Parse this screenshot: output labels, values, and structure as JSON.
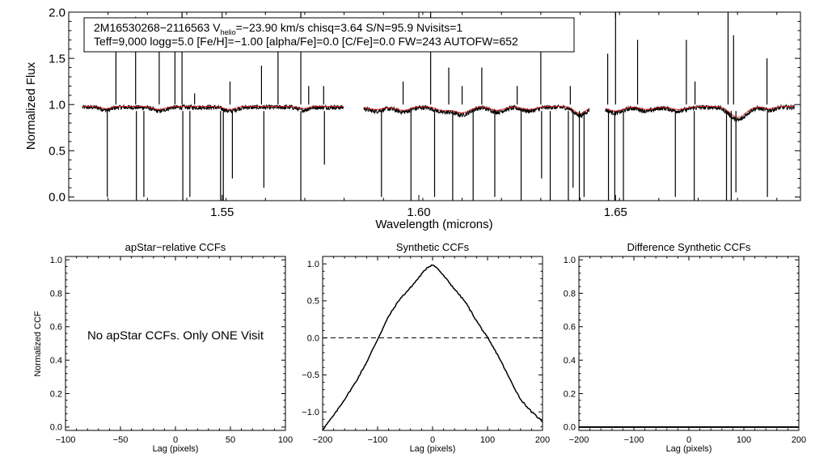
{
  "chart_data": [
    {
      "type": "line",
      "id": "spectrum",
      "xlabel": "Wavelength (microns)",
      "ylabel": "Normalized Flux",
      "xlim": [
        1.511,
        1.697
      ],
      "ylim": [
        -0.04,
        2.0
      ],
      "xticks": [
        1.55,
        1.6,
        1.65
      ],
      "xtick_labels": [
        "1.55",
        "1.60",
        "1.65"
      ],
      "yticks": [
        0.0,
        0.5,
        1.0,
        1.5,
        2.0
      ],
      "ytick_labels": [
        "0.0",
        "0.5",
        "1.0",
        "1.5",
        "2.0"
      ],
      "chips": [
        [
          1.5145,
          1.5808
        ],
        [
          1.586,
          1.6433
        ],
        [
          1.6474,
          1.6955
        ]
      ],
      "annotation": {
        "line1_part1": "2M16530268−2116563  V",
        "line1_sub": "helio",
        "line1_part2": "=−23.90 km/s  chisq=3.64  S/N=95.9  Nvisits=1",
        "line2": "Teff=9,000 logg=5.0 [Fe/H]=−1.00 [alpha/Fe]=0.0 [C/Fe]=0.0 FW=243 AUTOFW=652"
      },
      "series": [
        {
          "name": "observed spectrum",
          "color": "#000000",
          "level": 0.97,
          "noise": 0.025
        },
        {
          "name": "synthetic model",
          "color": "#d62020",
          "level": 0.98
        }
      ],
      "dips": [
        {
          "x": 1.5206,
          "depth": 0.03,
          "width": 0.0012
        },
        {
          "x": 1.534,
          "depth": 0.04,
          "width": 0.0015
        },
        {
          "x": 1.552,
          "depth": 0.04,
          "width": 0.0015
        },
        {
          "x": 1.5705,
          "depth": 0.03,
          "width": 0.0012
        },
        {
          "x": 1.589,
          "depth": 0.04,
          "width": 0.002
        },
        {
          "x": 1.596,
          "depth": 0.05,
          "width": 0.0018
        },
        {
          "x": 1.606,
          "depth": 0.05,
          "width": 0.0018
        },
        {
          "x": 1.611,
          "depth": 0.08,
          "width": 0.002
        },
        {
          "x": 1.62,
          "depth": 0.05,
          "width": 0.0018
        },
        {
          "x": 1.628,
          "depth": 0.04,
          "width": 0.0018
        },
        {
          "x": 1.641,
          "depth": 0.09,
          "width": 0.0015
        },
        {
          "x": 1.65,
          "depth": 0.06,
          "width": 0.002
        },
        {
          "x": 1.658,
          "depth": 0.04,
          "width": 0.0018
        },
        {
          "x": 1.666,
          "depth": 0.04,
          "width": 0.002
        },
        {
          "x": 1.6811,
          "depth": 0.14,
          "width": 0.002
        },
        {
          "x": 1.689,
          "depth": 0.03,
          "width": 0.0015
        }
      ],
      "spikes": [
        {
          "x": 1.523,
          "y": 1.67
        },
        {
          "x": 1.528,
          "y": 1.95
        },
        {
          "x": 1.534,
          "y": 1.6
        },
        {
          "x": 1.538,
          "y": 1.62
        },
        {
          "x": 1.5398,
          "y": 2.0
        },
        {
          "x": 1.543,
          "y": 1.12
        },
        {
          "x": 1.552,
          "y": 1.25
        },
        {
          "x": 1.56,
          "y": 1.42
        },
        {
          "x": 1.5642,
          "y": 1.75
        },
        {
          "x": 1.57,
          "y": 2.0
        },
        {
          "x": 1.572,
          "y": 1.2
        },
        {
          "x": 1.5758,
          "y": 1.2
        },
        {
          "x": 1.596,
          "y": 1.25
        },
        {
          "x": 1.603,
          "y": 2.0
        },
        {
          "x": 1.6076,
          "y": 1.4
        },
        {
          "x": 1.611,
          "y": 1.2
        },
        {
          "x": 1.616,
          "y": 1.4
        },
        {
          "x": 1.625,
          "y": 1.2
        },
        {
          "x": 1.631,
          "y": 1.68
        },
        {
          "x": 1.6385,
          "y": 1.2
        },
        {
          "x": 1.648,
          "y": 1.55
        },
        {
          "x": 1.65,
          "y": 2.0
        },
        {
          "x": 1.6556,
          "y": 1.7
        },
        {
          "x": 1.668,
          "y": 1.7
        },
        {
          "x": 1.6702,
          "y": 1.25
        },
        {
          "x": 1.6786,
          "y": 2.0
        },
        {
          "x": 1.68,
          "y": 1.75
        },
        {
          "x": 1.6885,
          "y": 1.5
        }
      ],
      "drops": [
        {
          "x": 1.5208,
          "y": 0.0
        },
        {
          "x": 1.5282,
          "y": -0.04
        },
        {
          "x": 1.5301,
          "y": 0.0
        },
        {
          "x": 1.54,
          "y": -0.04
        },
        {
          "x": 1.5418,
          "y": 0.0
        },
        {
          "x": 1.5496,
          "y": -0.04
        },
        {
          "x": 1.5503,
          "y": -0.04
        },
        {
          "x": 1.5526,
          "y": 0.2
        },
        {
          "x": 1.5606,
          "y": 0.1
        },
        {
          "x": 1.57,
          "y": -0.04
        },
        {
          "x": 1.576,
          "y": 0.35
        },
        {
          "x": 1.5905,
          "y": 0.0
        },
        {
          "x": 1.598,
          "y": -0.04
        },
        {
          "x": 1.604,
          "y": 0.0
        },
        {
          "x": 1.6086,
          "y": -0.04
        },
        {
          "x": 1.6138,
          "y": -0.04
        },
        {
          "x": 1.6193,
          "y": 0.0
        },
        {
          "x": 1.626,
          "y": -0.04
        },
        {
          "x": 1.6312,
          "y": 0.2
        },
        {
          "x": 1.6334,
          "y": -0.04
        },
        {
          "x": 1.638,
          "y": -0.04
        },
        {
          "x": 1.6392,
          "y": 0.1
        },
        {
          "x": 1.6408,
          "y": -0.04
        },
        {
          "x": 1.642,
          "y": 0.0
        },
        {
          "x": 1.6482,
          "y": -0.04
        },
        {
          "x": 1.6498,
          "y": -0.04
        },
        {
          "x": 1.652,
          "y": -0.04
        },
        {
          "x": 1.6652,
          "y": 0.0
        },
        {
          "x": 1.67,
          "y": -0.04
        },
        {
          "x": 1.6782,
          "y": -0.04
        },
        {
          "x": 1.6794,
          "y": -0.04
        },
        {
          "x": 1.6806,
          "y": 0.05
        },
        {
          "x": 1.6886,
          "y": 0.0
        }
      ]
    },
    {
      "type": "line",
      "id": "apstar-ccf",
      "title": "apStar−relative CCFs",
      "xlabel": "Lag (pixels)",
      "ylabel": "Normalized CCF",
      "xlim": [
        -100,
        100
      ],
      "ylim": [
        -0.02,
        1.02
      ],
      "xticks": [
        -100,
        -50,
        0,
        50,
        100
      ],
      "xtick_labels": [
        "−100",
        "−50",
        "0",
        "50",
        "100"
      ],
      "yticks": [
        0.0,
        0.2,
        0.4,
        0.6,
        0.8,
        1.0
      ],
      "ytick_labels": [
        "0.0",
        "0.2",
        "0.4",
        "0.6",
        "0.8",
        "1.0"
      ],
      "message": "No apStar CCFs.  Only ONE Visit",
      "message_x": 0,
      "message_y": 0.525,
      "series": []
    },
    {
      "type": "line",
      "id": "synthetic-ccf",
      "title": "Synthetic CCFs",
      "xlabel": "Lag (pixels)",
      "xlim": [
        -200,
        200
      ],
      "ylim": [
        -1.25,
        1.1
      ],
      "xticks": [
        -200,
        -100,
        0,
        100,
        200
      ],
      "xtick_labels": [
        "−200",
        "−100",
        "0",
        "100",
        "200"
      ],
      "yticks": [
        -1.0,
        -0.5,
        0.0,
        0.5,
        1.0
      ],
      "ytick_labels": [
        "−1.0",
        "−0.5",
        "0.0",
        "0.5",
        "1.0"
      ],
      "reference_line": 0.0,
      "series": [
        {
          "name": "synthetic CCF",
          "color": "#000000",
          "x": [
            -200,
            -180,
            -160,
            -140,
            -120,
            -100,
            -80,
            -60,
            -40,
            -20,
            -10,
            0,
            10,
            20,
            40,
            60,
            80,
            100,
            120,
            140,
            160,
            180,
            200
          ],
          "values": [
            -1.24,
            -1.05,
            -0.83,
            -0.6,
            -0.33,
            -0.02,
            0.29,
            0.52,
            0.68,
            0.86,
            0.95,
            0.99,
            0.93,
            0.84,
            0.66,
            0.48,
            0.23,
            0.0,
            -0.25,
            -0.55,
            -0.83,
            -1.0,
            -1.13
          ]
        }
      ]
    },
    {
      "type": "line",
      "id": "difference-ccf",
      "title": "Difference Synthetic CCFs",
      "xlim": [
        -200,
        200
      ],
      "ylim": [
        -0.02,
        1.02
      ],
      "xticks": [
        -200,
        -100,
        0,
        100,
        200
      ],
      "xtick_labels": [
        "−200",
        "−100",
        "0",
        "100",
        "200"
      ],
      "yticks": [
        0.0,
        0.2,
        0.4,
        0.6,
        0.8,
        1.0
      ],
      "ytick_labels": [
        "0.0",
        "0.2",
        "0.4",
        "0.6",
        "0.8",
        "1.0"
      ],
      "xlabel": "Lag (pixels)",
      "series": [
        {
          "name": "difference CCF",
          "color": "#000000",
          "x": [
            -200,
            200
          ],
          "values": [
            0.0,
            0.0
          ]
        }
      ]
    }
  ]
}
